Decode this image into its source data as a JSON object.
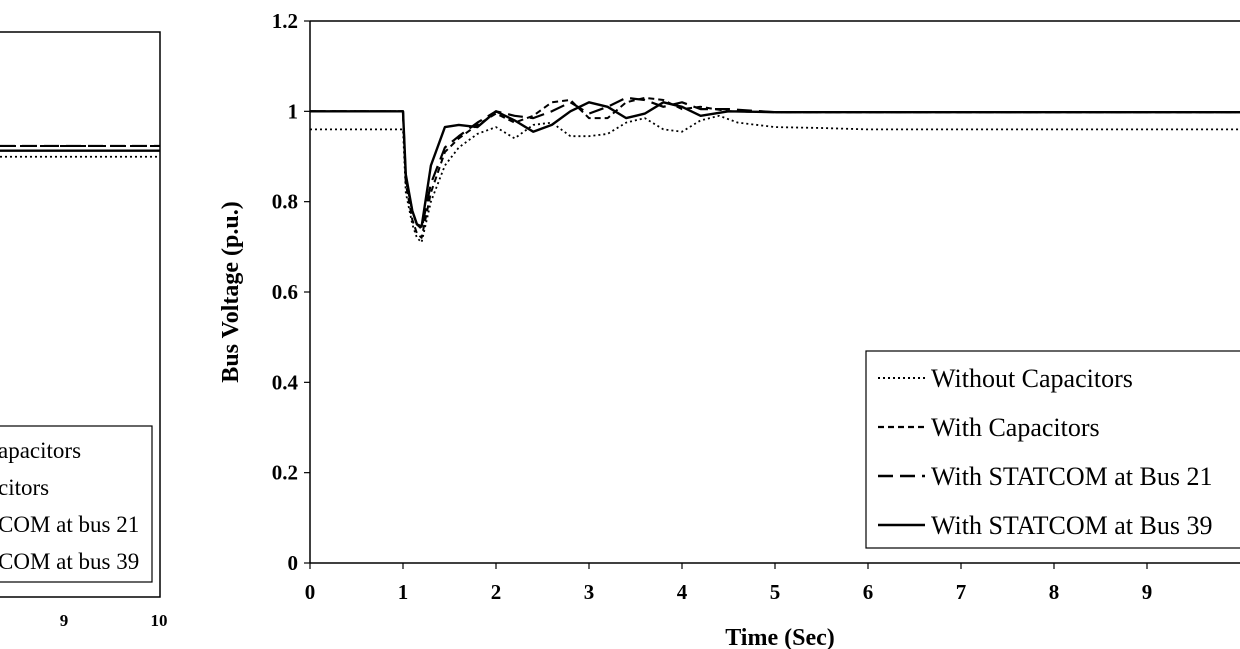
{
  "chart_data": [
    {
      "type": "line",
      "title": "",
      "xlabel": "",
      "ylabel": "",
      "x_ticks": [
        "9",
        "10"
      ],
      "series": [
        {
          "name": "Capacitors",
          "style": "dotted",
          "x": [
            0,
            10
          ],
          "y": [
            0.935,
            0.935
          ]
        },
        {
          "name": "citors",
          "style": "dashed",
          "x": [
            0,
            10
          ],
          "y": [
            0.958,
            0.958
          ]
        },
        {
          "name": "COM at bus 21",
          "style": "longdash",
          "x": [
            0,
            10
          ],
          "y": [
            0.958,
            0.958
          ]
        },
        {
          "name": "COM at bus 39",
          "style": "solid",
          "x": [
            0,
            10
          ],
          "y": [
            0.948,
            0.948
          ]
        }
      ],
      "legend": {
        "placement": "bottom-right",
        "entries": [
          "apacitors",
          "citors",
          "COM at bus 21",
          "COM at bus 39"
        ]
      }
    },
    {
      "type": "line",
      "title": "",
      "xlabel": "Time (Sec)",
      "ylabel": "Bus Voltage (p.u.)",
      "xlim": [
        0,
        10
      ],
      "ylim": [
        0,
        1.2
      ],
      "x_ticks": [
        "0",
        "1",
        "2",
        "3",
        "4",
        "5",
        "6",
        "7",
        "8",
        "9"
      ],
      "y_ticks": [
        "0",
        "0.2",
        "0.4",
        "0.6",
        "0.8",
        "1",
        "1.2"
      ],
      "grid": false,
      "legend": {
        "placement": "bottom-right",
        "entries": [
          "Without Capacitors",
          "With Capacitors",
          "With STATCOM at Bus 21",
          "With STATCOM at Bus 39"
        ]
      },
      "series": [
        {
          "name": "Without Capacitors",
          "style": "dotted",
          "x": [
            0,
            1.0,
            1.03,
            1.1,
            1.15,
            1.2,
            1.3,
            1.45,
            1.6,
            1.8,
            2.0,
            2.2,
            2.4,
            2.6,
            2.8,
            3.0,
            3.2,
            3.4,
            3.6,
            3.8,
            4.0,
            4.2,
            4.4,
            4.6,
            5.0,
            5.5,
            6.0,
            7.0,
            8.0,
            9.0,
            10.0
          ],
          "y": [
            0.96,
            0.96,
            0.82,
            0.75,
            0.72,
            0.71,
            0.8,
            0.88,
            0.92,
            0.95,
            0.965,
            0.94,
            0.97,
            0.975,
            0.945,
            0.945,
            0.95,
            0.975,
            0.985,
            0.96,
            0.955,
            0.98,
            0.99,
            0.975,
            0.965,
            0.963,
            0.96,
            0.96,
            0.96,
            0.96,
            0.96
          ]
        },
        {
          "name": "With Capacitors",
          "style": "dashed",
          "x": [
            0,
            1.0,
            1.03,
            1.1,
            1.15,
            1.2,
            1.3,
            1.45,
            1.6,
            1.8,
            2.0,
            2.2,
            2.4,
            2.6,
            2.8,
            3.0,
            3.2,
            3.4,
            3.6,
            3.8,
            4.0,
            4.2,
            4.5,
            5.0,
            6.0,
            7.0,
            8.0,
            9.0,
            10.0
          ],
          "y": [
            1.0,
            1.0,
            0.84,
            0.76,
            0.73,
            0.72,
            0.82,
            0.91,
            0.94,
            0.97,
            0.995,
            0.975,
            0.99,
            1.02,
            1.025,
            0.985,
            0.985,
            1.02,
            1.03,
            1.025,
            1.005,
            1.01,
            1.0,
            0.998,
            0.998,
            0.998,
            0.998,
            0.998,
            0.998
          ]
        },
        {
          "name": "With STATCOM at Bus 21",
          "style": "longdash",
          "x": [
            0,
            1.0,
            1.03,
            1.1,
            1.15,
            1.2,
            1.3,
            1.45,
            1.6,
            1.8,
            2.0,
            2.2,
            2.4,
            2.6,
            2.8,
            3.0,
            3.2,
            3.4,
            3.6,
            3.8,
            4.0,
            4.2,
            4.5,
            5.0,
            6.0,
            7.0,
            8.0,
            9.0,
            10.0
          ],
          "y": [
            1.0,
            1.0,
            0.85,
            0.78,
            0.75,
            0.74,
            0.84,
            0.92,
            0.945,
            0.975,
            1.0,
            0.99,
            0.985,
            1.0,
            1.02,
            0.995,
            1.01,
            1.03,
            1.025,
            1.01,
            1.02,
            1.005,
            1.005,
            0.998,
            0.998,
            0.998,
            0.998,
            0.998,
            0.998
          ]
        },
        {
          "name": "With STATCOM at Bus 39",
          "style": "solid",
          "x": [
            0,
            1.0,
            1.03,
            1.1,
            1.15,
            1.2,
            1.3,
            1.45,
            1.6,
            1.8,
            2.0,
            2.2,
            2.4,
            2.6,
            2.8,
            3.0,
            3.2,
            3.4,
            3.6,
            3.8,
            4.0,
            4.2,
            4.5,
            5.0,
            6.0,
            7.0,
            8.0,
            9.0,
            10.0
          ],
          "y": [
            1.0,
            1.0,
            0.86,
            0.78,
            0.75,
            0.745,
            0.88,
            0.965,
            0.97,
            0.965,
            1.0,
            0.98,
            0.955,
            0.97,
            1.0,
            1.02,
            1.01,
            0.985,
            0.995,
            1.02,
            1.01,
            0.99,
            1.0,
            0.998,
            0.998,
            0.998,
            0.998,
            0.998,
            0.998
          ]
        }
      ]
    }
  ]
}
